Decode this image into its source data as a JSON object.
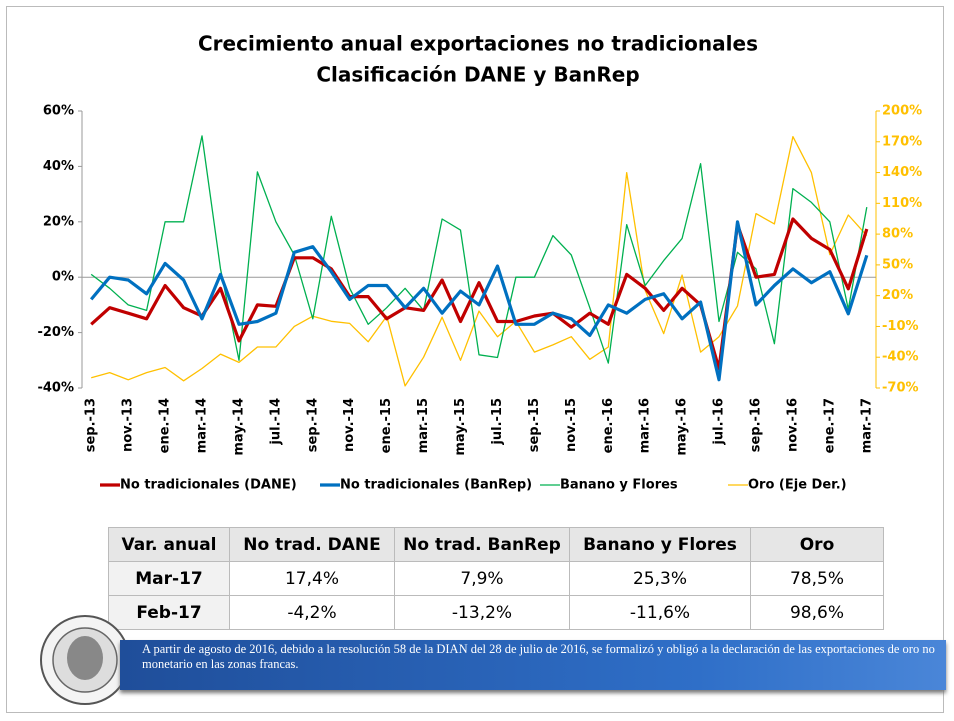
{
  "chart_data": {
    "type": "line",
    "title": [
      "Crecimiento anual exportaciones no tradicionales",
      "Clasificación DANE y BanRep"
    ],
    "categories": [
      "sep.-13",
      null,
      "nov.-13",
      null,
      "ene.-14",
      null,
      "mar.-14",
      null,
      "may.-14",
      null,
      "jul.-14",
      null,
      "sep.-14",
      null,
      "nov.-14",
      null,
      "ene.-15",
      null,
      "mar.-15",
      null,
      "may.-15",
      null,
      "jul.-15",
      null,
      "sep.-15",
      null,
      "nov.-15",
      null,
      "ene.-16",
      null,
      "mar.-16",
      null,
      "may.-16",
      null,
      "jul.-16",
      null,
      "sep.-16",
      null,
      "nov.-16",
      null,
      "ene.-17",
      null,
      "mar.-17"
    ],
    "series": [
      {
        "name": "No tradicionales (DANE)",
        "color": "#C00000",
        "width": 3.2,
        "values": [
          -17,
          -11,
          -13,
          -15,
          -3,
          -11,
          -14,
          -4,
          -23,
          -10,
          -10.5,
          7,
          7,
          3,
          -7,
          -7,
          -15,
          -11,
          -12,
          -1,
          -16,
          -2,
          -16,
          -16,
          -14,
          -13,
          -18,
          -13,
          -17,
          1,
          -4,
          -12,
          -4,
          -10,
          -33,
          19,
          0,
          1,
          21,
          14,
          10,
          -4.2,
          17.4
        ]
      },
      {
        "name": "No tradicionales (BanRep)",
        "color": "#0070C0",
        "width": 3.2,
        "values": [
          -8,
          0,
          -1,
          -6,
          5,
          -1,
          -15,
          1,
          -17,
          -16,
          -13,
          9,
          11,
          2,
          -8,
          -3,
          -3,
          -11,
          -4,
          -13,
          -5,
          -10,
          4,
          -17,
          -17,
          -13,
          -15,
          -21,
          -10,
          -13,
          -8,
          -6,
          -15,
          -9,
          -37,
          20,
          -10,
          -3,
          3,
          -2,
          2,
          -13.2,
          7.9
        ]
      },
      {
        "name": "Banano y Flores",
        "color": "#00B050",
        "width": 1.3,
        "values": [
          1,
          -4,
          -10,
          -12,
          20,
          20,
          51,
          3,
          -30,
          38,
          20,
          8,
          -15,
          22,
          -4,
          -17,
          -11,
          -4,
          -12,
          21,
          17,
          -28,
          -29,
          0,
          0,
          15,
          8,
          -11,
          -31,
          19,
          -3,
          6,
          14,
          41,
          -16,
          9,
          3,
          -24,
          32,
          27,
          20,
          -11.6,
          25.3
        ]
      },
      {
        "name": "Oro (Eje Der.)",
        "color": "#FFC000",
        "width": 1.3,
        "axis": "y2",
        "values": [
          -60,
          -55,
          -62,
          -55,
          -50,
          -63,
          -51,
          -37,
          -45,
          -30,
          -30,
          -10,
          0,
          -5,
          -7,
          -25,
          0,
          -68,
          -40,
          -1,
          -43,
          5,
          -20,
          -5,
          -35,
          -28,
          -20,
          -42,
          -30,
          140,
          25,
          -17,
          40,
          -35,
          -20,
          10,
          100,
          90,
          175,
          140,
          60,
          98.6,
          78.5
        ]
      }
    ],
    "ylim": [
      -40,
      60
    ],
    "yticks": [
      {
        "value": -40,
        "label": "-40%"
      },
      {
        "value": -20,
        "label": "-20%"
      },
      {
        "value": 0,
        "label": "0%"
      },
      {
        "value": 20,
        "label": "20%"
      },
      {
        "value": 40,
        "label": "40%"
      },
      {
        "value": 60,
        "label": "60%"
      }
    ],
    "y2lim": [
      -70,
      200
    ],
    "y2ticks": [
      {
        "value": -70,
        "label": "-70%"
      },
      {
        "value": -40,
        "label": "-40%"
      },
      {
        "value": -10,
        "label": "-10%"
      },
      {
        "value": 20,
        "label": "20%"
      },
      {
        "value": 50,
        "label": "50%"
      },
      {
        "value": 80,
        "label": "80%"
      },
      {
        "value": 110,
        "label": "110%"
      },
      {
        "value": 140,
        "label": "140%"
      },
      {
        "value": 170,
        "label": "170%"
      },
      {
        "value": 200,
        "label": "200%"
      }
    ],
    "y2color": "#FFC000",
    "legend": "bottom"
  },
  "table": {
    "header": [
      "Var. anual",
      "No trad. DANE",
      "No trad. BanRep",
      "Banano y Flores",
      "Oro"
    ],
    "rows": [
      [
        "Mar-17",
        "17,4%",
        "7,9%",
        "25,3%",
        "78,5%"
      ],
      [
        "Feb-17",
        "-4,2%",
        "-13,2%",
        "-11,6%",
        "98,6%"
      ]
    ]
  },
  "footnote": "A partir de agosto de 2016, debido a la resolución 58 de la DIAN del 28 de julio de 2016, se formalizó y obligó a la declaración de las exportaciones de oro no monetario en las zonas francas."
}
